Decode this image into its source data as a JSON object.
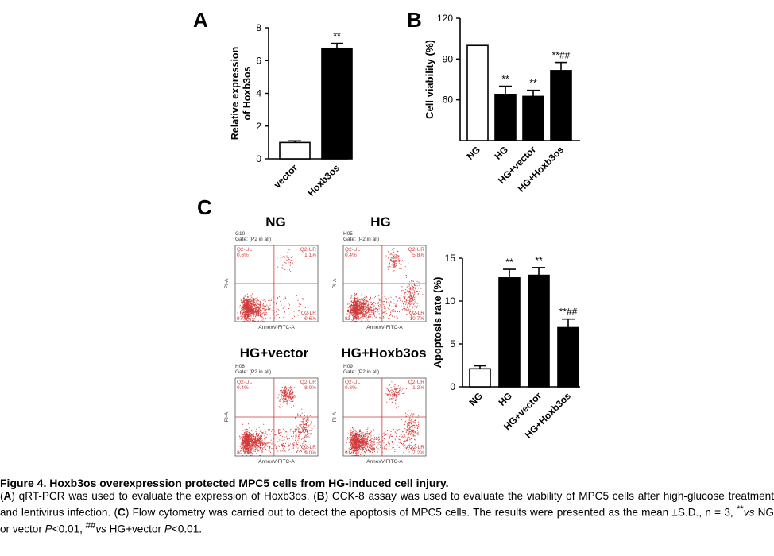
{
  "panels": {
    "A": "A",
    "B": "B",
    "C": "C"
  },
  "chart_data": [
    {
      "id": "A",
      "type": "bar",
      "categories": [
        "vector",
        "Hoxb3os"
      ],
      "values": [
        1.0,
        6.75
      ],
      "errors": [
        0.1,
        0.3
      ],
      "fills": [
        "#ffffff",
        "#000000"
      ],
      "annotations": [
        "",
        "**"
      ],
      "title": "",
      "xlabel": "",
      "ylabel": [
        "Relative expression",
        "of Hoxb3os"
      ],
      "ylim": [
        0,
        8
      ],
      "yticks": [
        0,
        2,
        4,
        6,
        8
      ]
    },
    {
      "id": "B",
      "type": "bar",
      "categories": [
        "NG",
        "HG",
        "HG+vector",
        "HG+Hoxb3os"
      ],
      "values": [
        100,
        64,
        62.5,
        81.5
      ],
      "errors": [
        0,
        6,
        4.5,
        6
      ],
      "fills": [
        "#ffffff",
        "#000000",
        "#000000",
        "#000000"
      ],
      "annotations": [
        "",
        "**",
        "**",
        "**##"
      ],
      "title": "",
      "xlabel": "",
      "ylabel": "Cell viability (%)",
      "ylim": [
        30,
        120
      ],
      "yticks": [
        60,
        90,
        120
      ]
    },
    {
      "id": "C",
      "type": "bar",
      "categories": [
        "NG",
        "HG",
        "HG+vector",
        "HG+Hoxb3os"
      ],
      "values": [
        2.1,
        12.7,
        13.0,
        6.9
      ],
      "errors": [
        0.35,
        1.0,
        0.9,
        1.0
      ],
      "fills": [
        "#ffffff",
        "#000000",
        "#000000",
        "#000000"
      ],
      "annotations": [
        "",
        "**",
        "**",
        "**##"
      ],
      "title": "",
      "xlabel": "",
      "ylabel": "Apoptosis rate (%)",
      "ylim": [
        0,
        15
      ],
      "yticks": [
        0,
        5,
        10,
        15
      ]
    },
    {
      "id": "C-flow",
      "type": "scatter",
      "xlabel": "AnnexV-FITC-A",
      "ylabel": "PI-A",
      "plots": [
        {
          "title": "NG",
          "sample": "G10",
          "gate": "Gate: (P2 in all)",
          "ul": "0.6%",
          "ur": "1.1%",
          "ll": "97.6%",
          "lr": "0.6%",
          "ul_name": "Q2-UL",
          "ur_name": "Q2-UR",
          "lr_name": "Q2-LR"
        },
        {
          "title": "HG",
          "sample": "H05",
          "gate": "Gate: (P2 in all)",
          "ul": "0.4%",
          "ur": "5.8%",
          "ll": "83.1%",
          "lr": "10.7%",
          "ul_name": "Q2-UL",
          "ur_name": "Q2-UR",
          "lr_name": "Q2-LR"
        },
        {
          "title": "HG+vector",
          "sample": "H08",
          "gate": "Gate: (P2 in all)",
          "ul": "0.4%",
          "ur": "8.0%",
          "ll": "82.6%",
          "lr": "9.0%",
          "ul_name": "Q2-UL",
          "ur_name": "Q2-UR",
          "lr_name": "Q2-LR"
        },
        {
          "title": "HG+Hoxb3os",
          "sample": "H09",
          "gate": "Gate: (P2 in all)",
          "ul": "0.3%",
          "ur": "1.2%",
          "ll": "91.1%",
          "lr": "7.2%",
          "ul_name": "Q2-UL",
          "ur_name": "Q2-UR",
          "lr_name": "Q2-LR"
        }
      ]
    }
  ],
  "caption": {
    "title": "Figure 4. Hoxb3os overexpression protected MPC5 cells from HG-induced cell injury.",
    "parts": {
      "a_letter": "A",
      "a_text": ") qRT-PCR was used to evaluate the expression of Hoxb3os. (",
      "b_letter": "B",
      "b_text": ") CCK-8 assay was used to evaluate the viability of MPC5 cells after high-glucose treatment and lentivirus infection. (",
      "c_letter": "C",
      "c_text": ") Flow cytometry was carried out to detect the apoptosis of MPC5 cells. The results were presented as the mean ±S.D., n = 3, ",
      "sig1": "**",
      "vs1": "vs",
      "mid1": " NG or vector ",
      "p1": "P",
      "mid2": "<0.01, ",
      "sig2": "##",
      "vs2": "vs",
      "mid3": " HG+vector ",
      "p2": "P",
      "end": "<0.01."
    }
  }
}
